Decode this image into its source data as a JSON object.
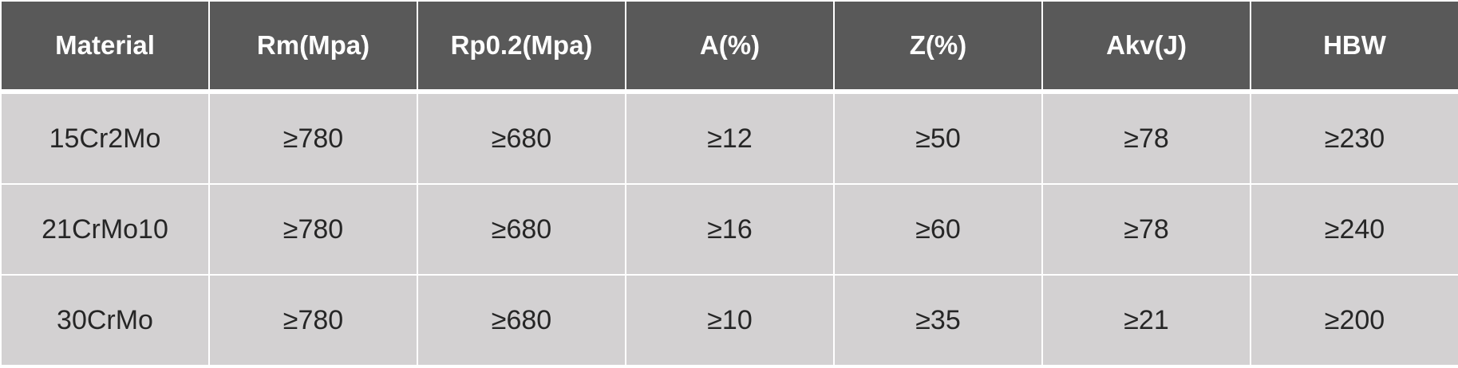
{
  "table": {
    "headers": [
      "Material",
      "Rm(Mpa)",
      "Rp0.2(Mpa)",
      "A(%)",
      "Z(%)",
      "Akv(J)",
      "HBW"
    ],
    "rows": [
      [
        "15Cr2Mo",
        "≥780",
        "≥680",
        "≥12",
        "≥50",
        "≥78",
        "≥230"
      ],
      [
        "21CrMo10",
        "≥780",
        "≥680",
        "≥16",
        "≥60",
        "≥78",
        "≥240"
      ],
      [
        "30CrMo",
        "≥780",
        "≥680",
        "≥10",
        "≥35",
        "≥21",
        "≥200"
      ]
    ]
  },
  "colors": {
    "header_bg": "#595959",
    "header_text": "#ffffff",
    "cell_bg": "#d3d1d2",
    "cell_text": "#262626",
    "grid_line": "#ffffff"
  }
}
